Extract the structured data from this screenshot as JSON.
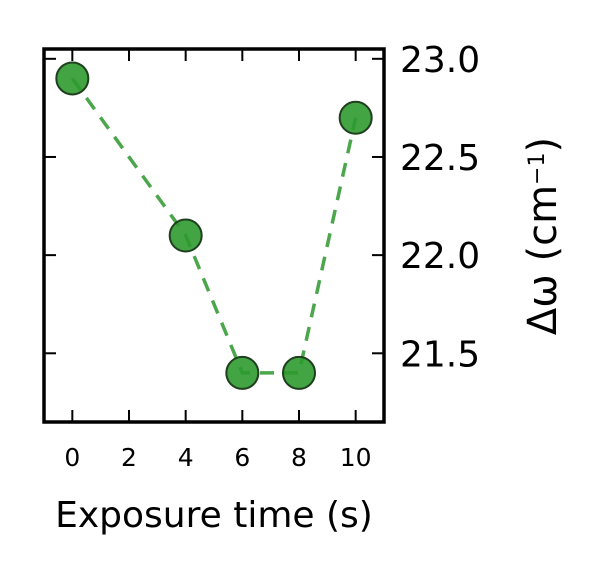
{
  "chart_data": {
    "type": "scatter",
    "title": "",
    "xlabel": "Exposure time (s)",
    "ylabel_prefix": "Δω (cm",
    "ylabel_superscript": "−1",
    "ylabel_suffix": ")",
    "xlim": [
      -1,
      11
    ],
    "ylim": [
      21.15,
      23.05
    ],
    "x_ticks": [
      0,
      2,
      4,
      6,
      8,
      10
    ],
    "x_tick_labels": [
      "0",
      "2",
      "4",
      "6",
      "8",
      "10"
    ],
    "y_ticks": [
      21.5,
      22.0,
      22.5,
      23.0
    ],
    "y_tick_labels": [
      "21.5",
      "22.0",
      "22.5",
      "23.0"
    ],
    "y_axis_side": "right",
    "grid": false,
    "legend": "none",
    "colors": {
      "marker_fill": "#2e9a2e",
      "marker_edge": "#1f3f1f",
      "line": "#4ca64c",
      "axes": "#000000"
    },
    "series": [
      {
        "x": [
          0,
          4,
          6,
          8,
          10
        ],
        "y": [
          22.9,
          22.1,
          21.4,
          21.4,
          22.7
        ],
        "line_style": "dashed",
        "marker": "circle"
      }
    ]
  }
}
